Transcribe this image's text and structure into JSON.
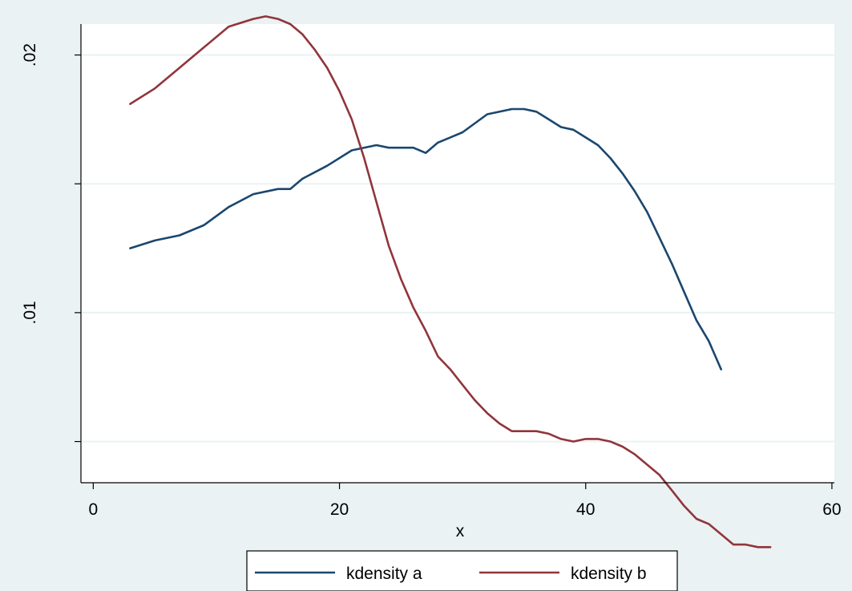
{
  "chart_data": {
    "type": "line",
    "xlabel": "x",
    "ylabel": "",
    "xlim": [
      -1,
      60.2
    ],
    "ylim": [
      0.0034,
      0.0212
    ],
    "x_ticks": [
      0,
      20,
      40,
      60
    ],
    "x_tick_labels": [
      "0",
      "20",
      "40",
      "60"
    ],
    "y_ticks": [
      0.005,
      0.01,
      0.015,
      0.02
    ],
    "y_tick_labels": [
      "",
      ".01",
      "",
      ".02"
    ],
    "grid": true,
    "legend_position": "bottom",
    "series": [
      {
        "name": "kdensity a",
        "color": "#1a476f",
        "x": [
          3,
          5,
          7,
          9,
          11,
          13,
          15,
          16,
          17,
          19,
          21,
          23,
          24,
          25,
          26,
          27,
          28,
          29,
          30,
          32,
          34,
          35,
          36,
          37,
          38,
          39,
          40,
          41,
          42,
          43,
          44,
          45,
          46,
          47,
          48,
          49,
          50,
          51
        ],
        "y": [
          0.0125,
          0.0128,
          0.013,
          0.0134,
          0.0141,
          0.0146,
          0.0148,
          0.0148,
          0.0152,
          0.0157,
          0.0163,
          0.0165,
          0.0164,
          0.0164,
          0.0164,
          0.0162,
          0.0166,
          0.0168,
          0.017,
          0.0177,
          0.0179,
          0.0179,
          0.0178,
          0.0175,
          0.0172,
          0.0171,
          0.0168,
          0.0165,
          0.016,
          0.0154,
          0.0147,
          0.0139,
          0.0129,
          0.0119,
          0.0108,
          0.0097,
          0.0089,
          0.0078
        ]
      },
      {
        "name": "kdensity b",
        "color": "#90353b",
        "x": [
          3,
          5,
          7,
          9,
          11,
          13,
          14,
          15,
          16,
          17,
          18,
          19,
          20,
          21,
          22,
          23,
          24,
          25,
          26,
          27,
          28,
          29,
          30,
          31,
          32,
          33,
          34,
          35,
          36,
          37,
          38,
          39,
          40,
          41,
          42,
          43,
          44,
          45,
          46,
          47,
          48,
          49,
          50,
          51,
          52,
          53,
          54,
          55
        ],
        "y": [
          0.0181,
          0.0187,
          0.0195,
          0.0203,
          0.0211,
          0.0214,
          0.0215,
          0.0214,
          0.0212,
          0.0208,
          0.0202,
          0.0195,
          0.0186,
          0.0175,
          0.016,
          0.0143,
          0.0126,
          0.0113,
          0.0102,
          0.0093,
          0.0083,
          0.0078,
          0.0072,
          0.0066,
          0.0061,
          0.0057,
          0.0054,
          0.0054,
          0.0054,
          0.0053,
          0.0051,
          0.005,
          0.0051,
          0.0051,
          0.005,
          0.0048,
          0.0045,
          0.0041,
          0.0037,
          0.0031,
          0.0025,
          0.002,
          0.0018,
          0.0014,
          0.001,
          0.001,
          0.0009,
          0.0009
        ]
      }
    ]
  }
}
